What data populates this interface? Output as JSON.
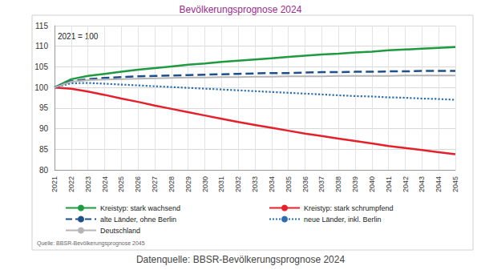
{
  "chart_data": {
    "type": "line",
    "title": "Bevölkerungsprognose 2024",
    "annotation": "2021 = 100",
    "source": "Quelle: BBSR-Bevölkerungsprognose 2045",
    "caption": "Datenquelle: BBSR-Bevölkerungsprognose 2024",
    "categories": [
      "2021",
      "2022",
      "2023",
      "2024",
      "2025",
      "2026",
      "2027",
      "2028",
      "2029",
      "2030",
      "2031",
      "2032",
      "2033",
      "2034",
      "2035",
      "2036",
      "2037",
      "2038",
      "2039",
      "2040",
      "2041",
      "2042",
      "2043",
      "2044",
      "2045"
    ],
    "series": [
      {
        "name": "Kreistyp: stark wachsend",
        "color": "#1f9a3f",
        "line_style": "solid",
        "values": [
          100,
          102,
          102.8,
          103.3,
          103.8,
          104.3,
          104.7,
          105.1,
          105.5,
          105.8,
          106.2,
          106.5,
          106.8,
          107.1,
          107.4,
          107.7,
          108.0,
          108.2,
          108.5,
          108.7,
          109.0,
          109.2,
          109.4,
          109.6,
          109.8
        ]
      },
      {
        "name": "Kreistyp: stark schrumpfend",
        "color": "#e5202a",
        "line_style": "solid",
        "values": [
          100,
          99.7,
          99.0,
          98.2,
          97.3,
          96.5,
          95.6,
          94.8,
          94.0,
          93.2,
          92.4,
          91.6,
          90.9,
          90.2,
          89.5,
          88.8,
          88.2,
          87.6,
          87.0,
          86.4,
          85.8,
          85.3,
          84.8,
          84.3,
          83.8
        ]
      },
      {
        "name": "alte Länder, ohne Berlin",
        "color": "#1f4e8c",
        "line_style": "dashed",
        "values": [
          100,
          101.5,
          102.0,
          102.3,
          102.5,
          102.7,
          102.8,
          102.9,
          103.0,
          103.1,
          103.2,
          103.3,
          103.4,
          103.5,
          103.5,
          103.6,
          103.7,
          103.7,
          103.8,
          103.8,
          103.9,
          103.9,
          104.0,
          104.0,
          104.0
        ]
      },
      {
        "name": "neue Länder, inkl. Berlin",
        "color": "#2b6fb2",
        "line_style": "dotted",
        "values": [
          100,
          101.0,
          101.1,
          100.9,
          100.7,
          100.5,
          100.3,
          100.1,
          99.9,
          99.7,
          99.5,
          99.3,
          99.1,
          98.9,
          98.7,
          98.5,
          98.3,
          98.1,
          97.9,
          97.8,
          97.6,
          97.5,
          97.3,
          97.2,
          97.0
        ]
      },
      {
        "name": "Deutschland",
        "color": "#b5b5b5",
        "line_style": "solid",
        "values": [
          100,
          101.4,
          101.8,
          101.9,
          102.0,
          102.1,
          102.2,
          102.3,
          102.4,
          102.4,
          102.5,
          102.5,
          102.6,
          102.6,
          102.7,
          102.7,
          102.7,
          102.8,
          102.8,
          102.8,
          102.8,
          102.9,
          102.9,
          102.9,
          102.9
        ]
      }
    ],
    "ylim": [
      80,
      115
    ],
    "yticks": [
      80,
      85,
      90,
      95,
      100,
      105,
      110,
      115
    ],
    "grid": true,
    "legend": "bottom"
  }
}
